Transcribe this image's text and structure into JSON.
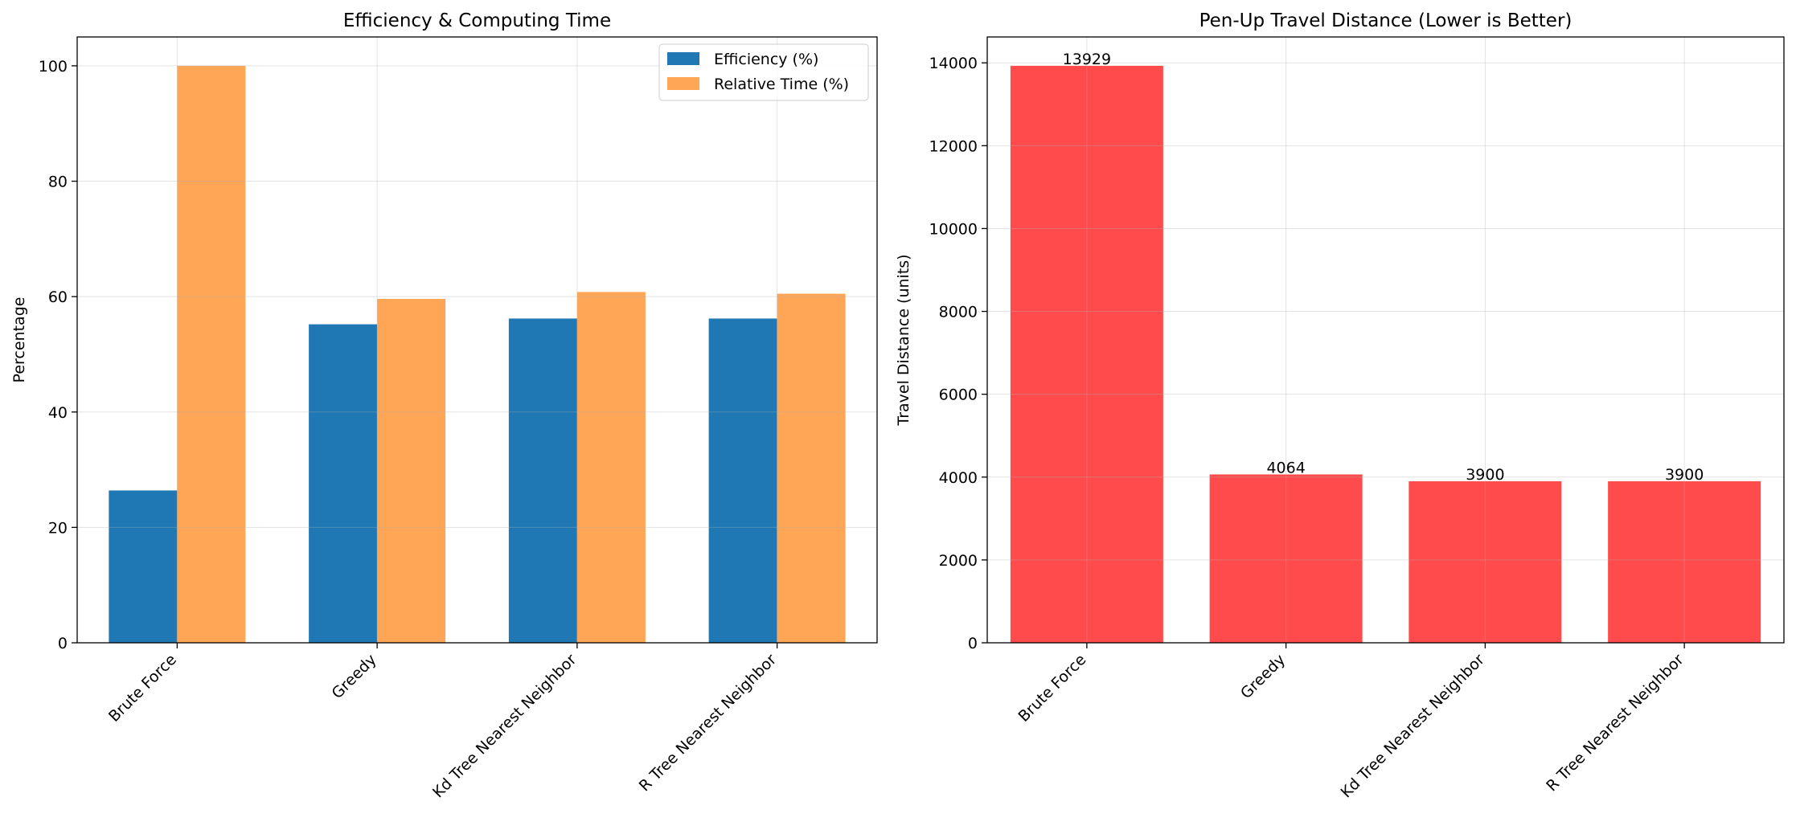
{
  "chart_data": [
    {
      "type": "bar",
      "title": "Efficiency & Computing Time",
      "xlabel": "",
      "ylabel": "Percentage",
      "categories": [
        "Brute Force",
        "Greedy",
        "Kd Tree Nearest Neighbor",
        "R Tree Nearest Neighbor"
      ],
      "series": [
        {
          "name": "Efficiency (%)",
          "color": "#1f77b4",
          "values": [
            26.4,
            55.2,
            56.2,
            56.2
          ]
        },
        {
          "name": "Relative Time (%)",
          "color": "#ffa556",
          "values": [
            100.0,
            59.6,
            60.8,
            60.5
          ]
        }
      ],
      "ylim": [
        0,
        105
      ],
      "yticks": [
        0,
        20,
        40,
        60,
        80,
        100
      ],
      "grid": true,
      "legend": "top-right"
    },
    {
      "type": "bar",
      "title": "Pen-Up Travel Distance (Lower is Better)",
      "xlabel": "",
      "ylabel": "Travel Distance (units)",
      "categories": [
        "Brute Force",
        "Greedy",
        "Kd Tree Nearest Neighbor",
        "R Tree Nearest Neighbor"
      ],
      "series": [
        {
          "color": "#ff4b4b",
          "values": [
            13929,
            4064,
            3900,
            3900
          ]
        }
      ],
      "data_labels": [
        "13929",
        "4064",
        "3900",
        "3900"
      ],
      "ylim": [
        0,
        14625
      ],
      "yticks": [
        0,
        2000,
        4000,
        6000,
        8000,
        10000,
        12000,
        14000
      ],
      "grid": true
    }
  ]
}
